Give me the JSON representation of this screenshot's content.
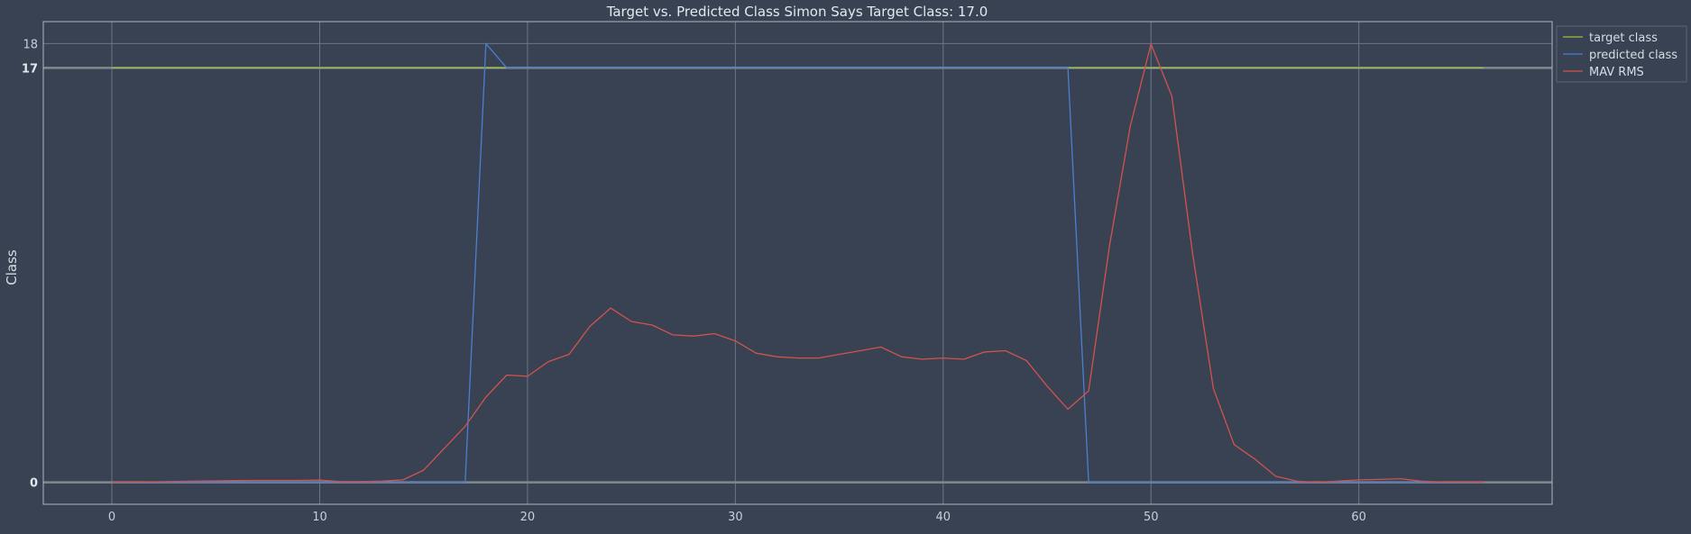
{
  "chart_data": {
    "type": "line",
    "title": "Target vs. Predicted Class Simon Says Target Class: 17.0",
    "xlabel": "",
    "ylabel": "Class",
    "xlim": [
      -3.3,
      69.3
    ],
    "ylim": [
      -0.9,
      18.9
    ],
    "x_ticks": [
      0,
      10,
      20,
      30,
      40,
      50,
      60
    ],
    "x_tick_labels": [
      "0",
      "10",
      "20",
      "30",
      "40",
      "50",
      "60"
    ],
    "y_ticks": [
      {
        "value": 0,
        "label": "0",
        "bold": true
      },
      {
        "value": 17,
        "label": "17",
        "bold": true
      },
      {
        "value": 18,
        "label": "18",
        "bold": false
      }
    ],
    "grid": true,
    "legend_position": "top-right",
    "colors": {
      "background": "#384252",
      "grid": "#6b7686",
      "frame": "#aeb6c4",
      "refline": "#808890"
    },
    "series": [
      {
        "name": "target class",
        "color": "#9bbf3d",
        "x": [
          0,
          66
        ],
        "y": [
          17,
          17
        ]
      },
      {
        "name": "predicted class",
        "color": "#4b7fd1",
        "x": [
          0,
          1,
          2,
          3,
          4,
          5,
          6,
          7,
          8,
          9,
          10,
          11,
          12,
          13,
          14,
          15,
          16,
          17,
          18,
          19,
          20,
          21,
          22,
          23,
          24,
          25,
          26,
          27,
          28,
          29,
          30,
          31,
          32,
          33,
          34,
          35,
          36,
          37,
          38,
          39,
          40,
          41,
          42,
          43,
          44,
          45,
          46,
          47,
          48,
          49,
          50,
          51,
          52,
          53,
          54,
          55,
          56,
          57,
          58,
          59,
          60,
          61,
          62,
          63,
          64,
          65,
          66
        ],
        "y": [
          0,
          0,
          0,
          0,
          0,
          0,
          0,
          0,
          0,
          0,
          0,
          0,
          0,
          0,
          0,
          0,
          0,
          0,
          18,
          17,
          17,
          17,
          17,
          17,
          17,
          17,
          17,
          17,
          17,
          17,
          17,
          17,
          17,
          17,
          17,
          17,
          17,
          17,
          17,
          17,
          17,
          17,
          17,
          17,
          17,
          17,
          17,
          0,
          0,
          0,
          0,
          0,
          0,
          0,
          0,
          0,
          0,
          0,
          0,
          0,
          0,
          0,
          0,
          0,
          0,
          0,
          0
        ]
      },
      {
        "name": "MAV RMS",
        "color": "#d2534d",
        "x": [
          0,
          1,
          2,
          3,
          4,
          5,
          6,
          7,
          8,
          9,
          10,
          11,
          12,
          13,
          14,
          15,
          16,
          17,
          18,
          19,
          20,
          21,
          22,
          23,
          24,
          25,
          26,
          27,
          28,
          29,
          30,
          31,
          32,
          33,
          34,
          35,
          36,
          37,
          38,
          39,
          40,
          41,
          42,
          43,
          44,
          45,
          46,
          47,
          48,
          49,
          50,
          51,
          52,
          53,
          54,
          55,
          56,
          57,
          58,
          59,
          60,
          61,
          62,
          63,
          64,
          65,
          66
        ],
        "y": [
          0,
          0,
          0.02,
          0.04,
          0.05,
          0.06,
          0.07,
          0.08,
          0.08,
          0.08,
          0.09,
          0.03,
          0.03,
          0.05,
          0.1,
          0.5,
          1.4,
          2.3,
          3.5,
          4.4,
          4.35,
          4.95,
          5.25,
          6.4,
          7.15,
          6.6,
          6.45,
          6.05,
          6,
          6.1,
          5.8,
          5.3,
          5.15,
          5.1,
          5.1,
          5.25,
          5.4,
          5.55,
          5.15,
          5.05,
          5.1,
          5.05,
          5.35,
          5.4,
          5,
          3.95,
          3,
          3.75,
          9.7,
          14.6,
          17.98,
          15.85,
          9.4,
          3.85,
          1.55,
          0.95,
          0.25,
          0.05,
          0,
          0.05,
          0.1,
          0.12,
          0.15,
          0.05,
          0.01,
          0,
          0
        ]
      }
    ]
  }
}
